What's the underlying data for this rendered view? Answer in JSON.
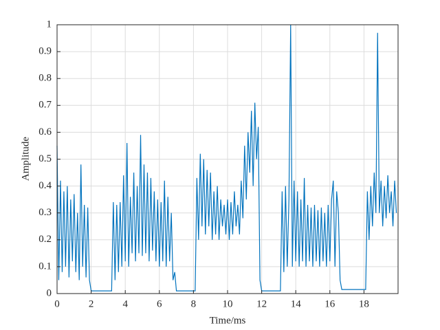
{
  "chart_data": {
    "type": "line",
    "xlabel": "Time/ms",
    "ylabel": "Amplitude",
    "xlim": [
      0,
      20
    ],
    "ylim": [
      0,
      1
    ],
    "xticks": [
      0,
      2,
      4,
      6,
      8,
      10,
      12,
      14,
      16,
      18
    ],
    "yticks": [
      0,
      0.1,
      0.2,
      0.3,
      0.4,
      0.5,
      0.6,
      0.7,
      0.8,
      0.9,
      1
    ],
    "grid": true,
    "series": [
      {
        "color": "#0072bd",
        "x": [
          0,
          0.1,
          0.2,
          0.3,
          0.4,
          0.5,
          0.6,
          0.7,
          0.8,
          0.9,
          1,
          1.1,
          1.2,
          1.3,
          1.4,
          1.5,
          1.6,
          1.7,
          1.8,
          1.9,
          2,
          2.1,
          2.2,
          2.3,
          2.4,
          2.5,
          2.6,
          2.7,
          2.8,
          2.9,
          3,
          3.1,
          3.2,
          3.3,
          3.4,
          3.5,
          3.6,
          3.7,
          3.8,
          3.9,
          4,
          4.1,
          4.2,
          4.3,
          4.4,
          4.5,
          4.6,
          4.7,
          4.8,
          4.9,
          5,
          5.1,
          5.2,
          5.3,
          5.4,
          5.5,
          5.6,
          5.7,
          5.8,
          5.9,
          6,
          6.1,
          6.2,
          6.3,
          6.4,
          6.5,
          6.6,
          6.7,
          6.8,
          6.9,
          7,
          7.1,
          7.2,
          7.3,
          7.4,
          7.5,
          7.6,
          7.7,
          7.8,
          7.9,
          8,
          8.1,
          8.2,
          8.3,
          8.4,
          8.5,
          8.6,
          8.7,
          8.8,
          8.9,
          9,
          9.1,
          9.2,
          9.3,
          9.4,
          9.5,
          9.6,
          9.7,
          9.8,
          9.9,
          10,
          10.1,
          10.2,
          10.3,
          10.4,
          10.5,
          10.6,
          10.7,
          10.8,
          10.9,
          11,
          11.1,
          11.2,
          11.3,
          11.4,
          11.5,
          11.6,
          11.7,
          11.8,
          11.9,
          12,
          12.1,
          12.2,
          12.3,
          12.4,
          12.5,
          12.6,
          12.7,
          12.8,
          12.9,
          13,
          13.1,
          13.2,
          13.3,
          13.4,
          13.5,
          13.6,
          13.7,
          13.8,
          13.9,
          14,
          14.1,
          14.2,
          14.3,
          14.4,
          14.5,
          14.6,
          14.7,
          14.8,
          14.9,
          15,
          15.1,
          15.2,
          15.3,
          15.4,
          15.5,
          15.6,
          15.7,
          15.8,
          15.9,
          16,
          16.1,
          16.2,
          16.3,
          16.4,
          16.5,
          16.6,
          16.7,
          16.8,
          16.9,
          17,
          17.1,
          17.2,
          17.3,
          17.4,
          17.5,
          17.6,
          17.7,
          17.8,
          17.9,
          18,
          18.1,
          18.2,
          18.3,
          18.4,
          18.5,
          18.6,
          18.7,
          18.8,
          18.9,
          19,
          19.1,
          19.2,
          19.3,
          19.4,
          19.5,
          19.6,
          19.7,
          19.8,
          19.9
        ],
        "values": [
          0.55,
          0.05,
          0.42,
          0.08,
          0.38,
          0.1,
          0.4,
          0.06,
          0.35,
          0.12,
          0.37,
          0.08,
          0.3,
          0.05,
          0.48,
          0.1,
          0.33,
          0.06,
          0.32,
          0.05,
          0.01,
          0.01,
          0.01,
          0.01,
          0.01,
          0.01,
          0.01,
          0.01,
          0.01,
          0.01,
          0.01,
          0.01,
          0.01,
          0.34,
          0.05,
          0.33,
          0.08,
          0.34,
          0.1,
          0.44,
          0.12,
          0.56,
          0.1,
          0.36,
          0.15,
          0.45,
          0.12,
          0.4,
          0.15,
          0.59,
          0.14,
          0.48,
          0.15,
          0.45,
          0.12,
          0.43,
          0.16,
          0.38,
          0.12,
          0.35,
          0.1,
          0.34,
          0.12,
          0.42,
          0.1,
          0.36,
          0.12,
          0.3,
          0.05,
          0.08,
          0.01,
          0.01,
          0.01,
          0.01,
          0.01,
          0.01,
          0.01,
          0.01,
          0.01,
          0.01,
          0.01,
          0.01,
          0.43,
          0.2,
          0.52,
          0.25,
          0.5,
          0.22,
          0.46,
          0.25,
          0.45,
          0.2,
          0.38,
          0.22,
          0.4,
          0.2,
          0.35,
          0.25,
          0.33,
          0.22,
          0.35,
          0.2,
          0.34,
          0.22,
          0.38,
          0.25,
          0.33,
          0.22,
          0.42,
          0.28,
          0.55,
          0.35,
          0.6,
          0.45,
          0.68,
          0.4,
          0.71,
          0.5,
          0.62,
          0.05,
          0.01,
          0.01,
          0.01,
          0.01,
          0.01,
          0.01,
          0.01,
          0.01,
          0.01,
          0.01,
          0.01,
          0.01,
          0.38,
          0.08,
          0.4,
          0.1,
          0.35,
          1.0,
          0.1,
          0.42,
          0.12,
          0.38,
          0.1,
          0.35,
          0.12,
          0.43,
          0.1,
          0.33,
          0.12,
          0.32,
          0.1,
          0.33,
          0.12,
          0.31,
          0.1,
          0.32,
          0.12,
          0.3,
          0.1,
          0.33,
          0.12,
          0.35,
          0.42,
          0.1,
          0.38,
          0.3,
          0.05,
          0.015,
          0.015,
          0.015,
          0.015,
          0.015,
          0.015,
          0.015,
          0.015,
          0.015,
          0.015,
          0.015,
          0.015,
          0.015,
          0.015,
          0.015,
          0.38,
          0.2,
          0.4,
          0.25,
          0.45,
          0.3,
          0.97,
          0.3,
          0.42,
          0.25,
          0.4,
          0.28,
          0.44,
          0.3,
          0.38,
          0.25,
          0.42,
          0.3
        ]
      }
    ]
  }
}
